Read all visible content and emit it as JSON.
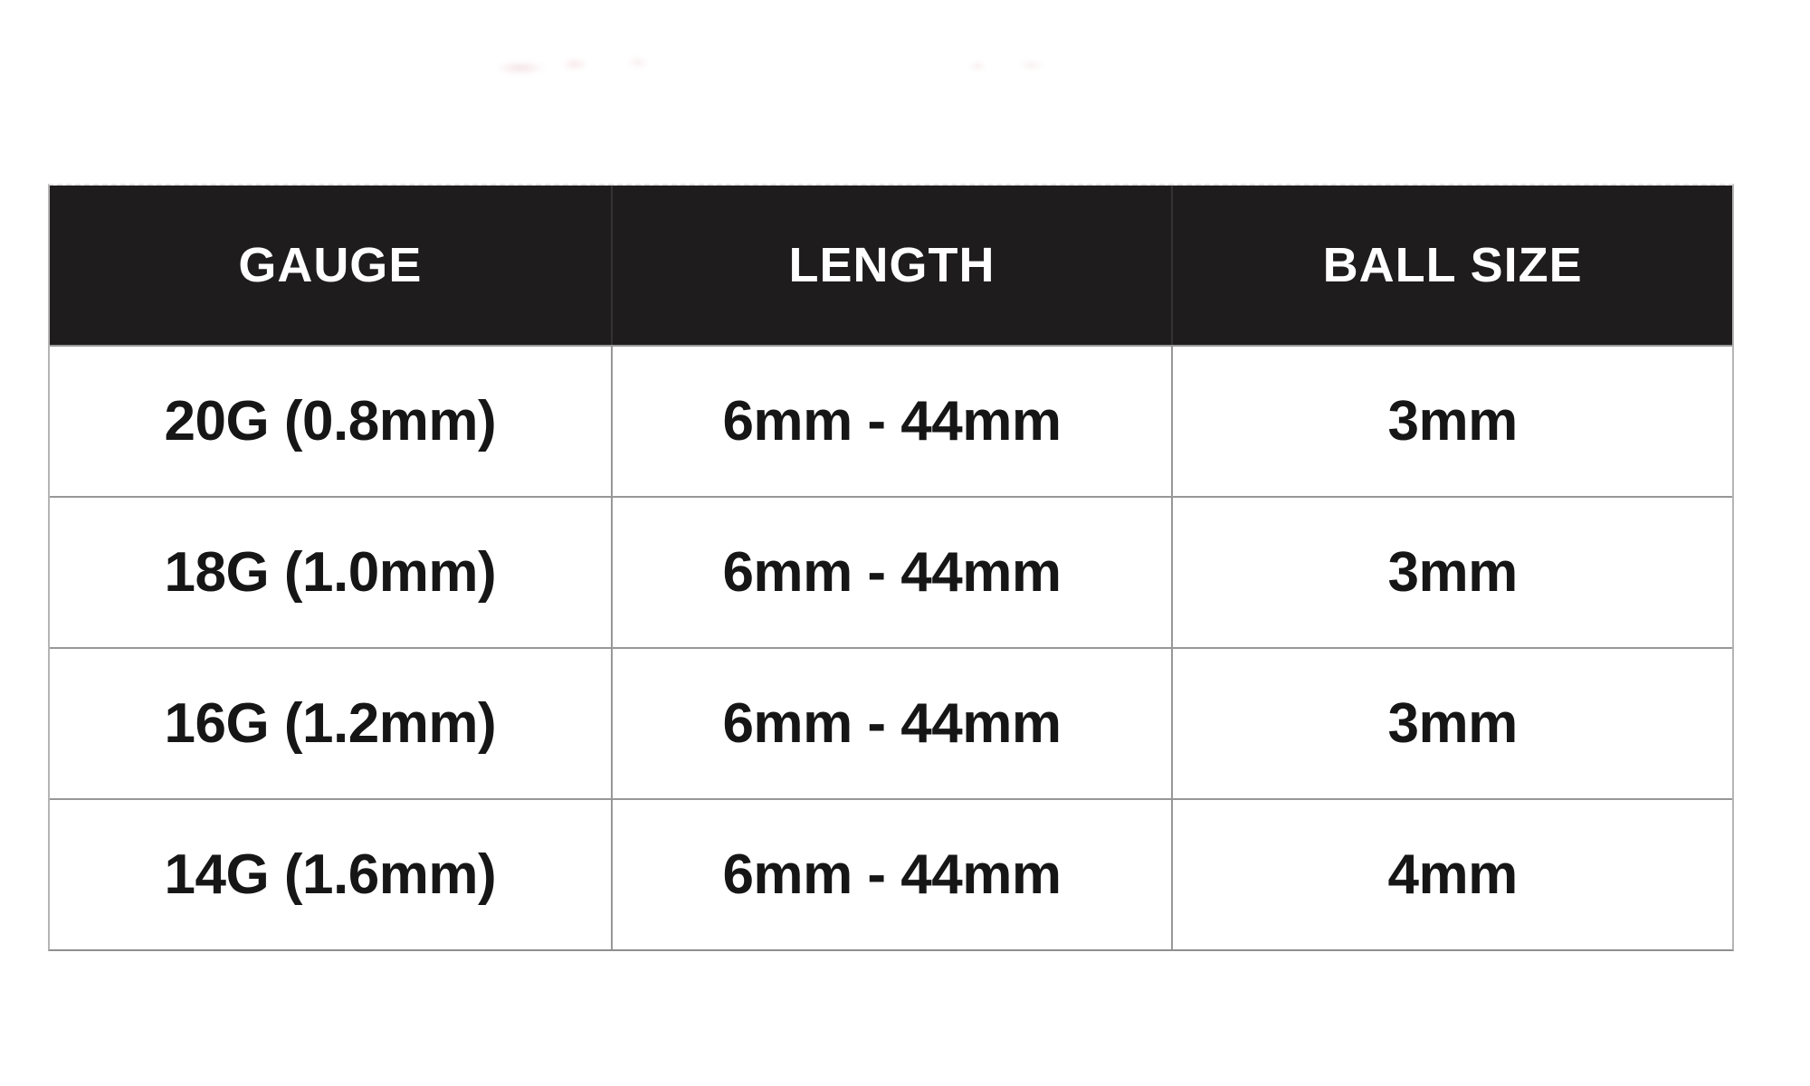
{
  "chart_data": {
    "type": "table",
    "title": "",
    "columns": [
      "GAUGE",
      "LENGTH",
      "BALL SIZE"
    ],
    "rows": [
      [
        "20G (0.8mm)",
        "6mm - 44mm",
        "3mm"
      ],
      [
        "18G (1.0mm)",
        "6mm - 44mm",
        "3mm"
      ],
      [
        "16G (1.2mm)",
        "6mm - 44mm",
        "3mm"
      ],
      [
        "14G (1.6mm)",
        "6mm - 44mm",
        "4mm"
      ]
    ]
  },
  "colors": {
    "header_bg": "#1e1c1c",
    "header_text": "#ffffff",
    "cell_text": "#161616",
    "grid_line": "#979797",
    "header_separator": "#343232",
    "outer_border": "#b5b5b5",
    "top_dashed_line": "#e4e2e2",
    "page_bg": "#ffffff"
  }
}
